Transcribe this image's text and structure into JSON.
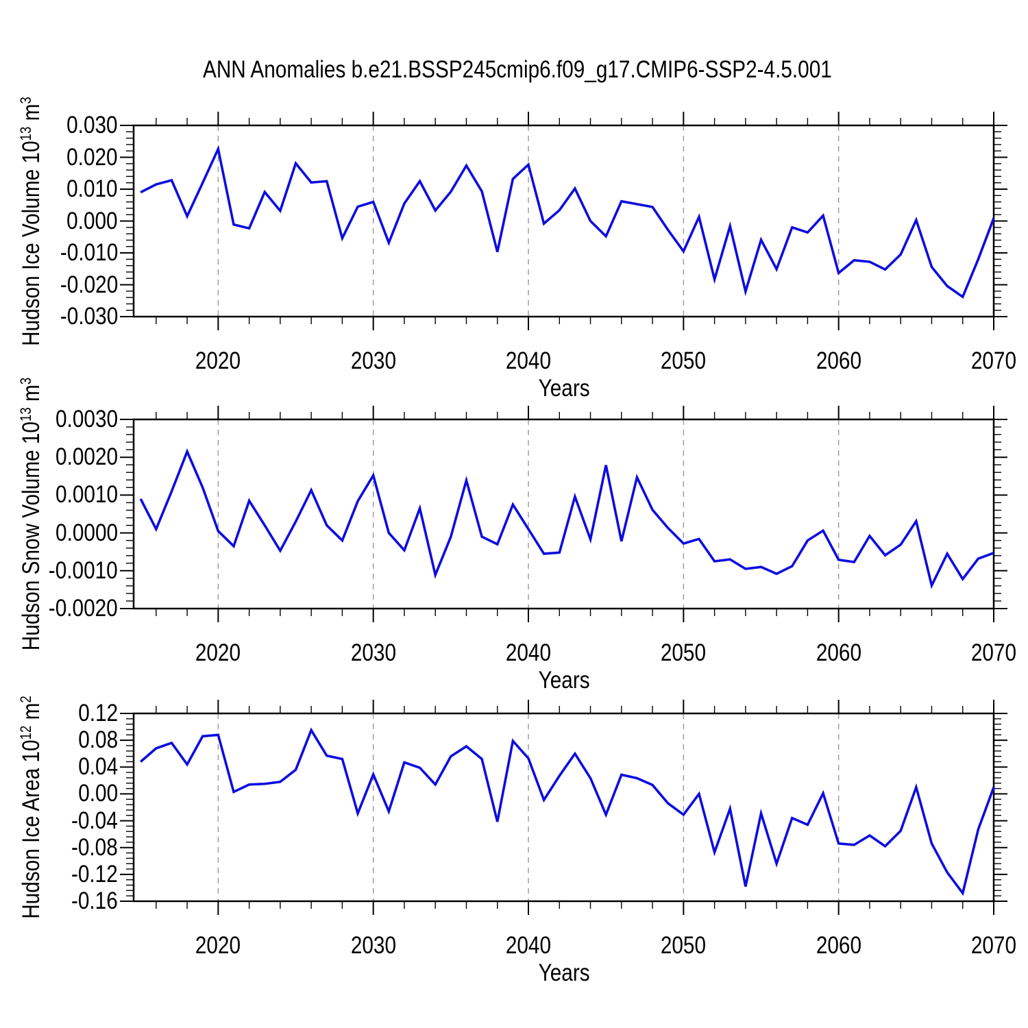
{
  "title": "ANN Anomalies b.e21.BSSP245cmip6.f09_g17.CMIP6-SSP2-4.5.001",
  "style": {
    "line_color": "#0d0de0",
    "grid_color": "#999999",
    "axis_color": "#000000",
    "background": "#ffffff"
  },
  "x_axis": {
    "label": "Years",
    "tick_years": [
      2020,
      2030,
      2040,
      2050,
      2060,
      2070
    ],
    "tick_labels": [
      "2020",
      "2030",
      "2040",
      "2050",
      "2060",
      "2070"
    ],
    "gridline_years": [
      2020,
      2030,
      2040,
      2050,
      2060
    ],
    "minor_step": 2,
    "range": [
      2014.55,
      2070
    ]
  },
  "years": [
    2015,
    2016,
    2017,
    2018,
    2019,
    2020,
    2021,
    2022,
    2023,
    2024,
    2025,
    2026,
    2027,
    2028,
    2029,
    2030,
    2031,
    2032,
    2033,
    2034,
    2035,
    2036,
    2037,
    2038,
    2039,
    2040,
    2041,
    2042,
    2043,
    2044,
    2045,
    2046,
    2047,
    2048,
    2049,
    2050,
    2051,
    2052,
    2053,
    2054,
    2055,
    2056,
    2057,
    2058,
    2059,
    2060,
    2061,
    2062,
    2063,
    2064,
    2065,
    2066,
    2067,
    2068,
    2069,
    2070
  ],
  "chart_data": [
    {
      "type": "line",
      "title": "Hudson Ice Volume anomalies",
      "xlabel": "Years",
      "ylabel": {
        "prefix": "Hudson Ice Volume 10",
        "exp": "13",
        "unit": " m",
        "unit_exp": "3"
      },
      "ylim": [
        -0.03,
        0.03
      ],
      "ytick_values": [
        0.03,
        0.02,
        0.01,
        0.0,
        -0.01,
        -0.02,
        -0.03
      ],
      "ytick_labels": [
        "0.030",
        "0.020",
        "0.010",
        "0.000",
        "-0.010",
        "-0.020",
        "-0.030"
      ],
      "yminor_step": 0.002,
      "grid": "x-dashed",
      "legend": "none",
      "values": [
        0.009,
        0.0115,
        0.0128,
        0.0015,
        0.012,
        0.0226,
        -0.0011,
        -0.0023,
        0.0091,
        0.0032,
        0.0181,
        0.0121,
        0.0125,
        -0.0054,
        0.0045,
        0.006,
        -0.0068,
        0.0055,
        0.0125,
        0.0033,
        0.0092,
        0.0174,
        0.0093,
        -0.0097,
        0.0132,
        0.0177,
        -0.0008,
        0.0034,
        0.0102,
        0.0,
        -0.0048,
        0.0062,
        0.0053,
        0.0044,
        -0.0028,
        -0.0095,
        0.0013,
        -0.0183,
        -0.0016,
        -0.0221,
        -0.0059,
        -0.0151,
        -0.002,
        -0.0036,
        0.0017,
        -0.0163,
        -0.0123,
        -0.0128,
        -0.0152,
        -0.0105,
        0.0003,
        -0.0144,
        -0.0204,
        -0.0238,
        -0.012,
        0.0009
      ]
    },
    {
      "type": "line",
      "title": "Hudson Snow Volume anomalies",
      "xlabel": "Years",
      "ylabel": {
        "prefix": "Hudson Snow Volume 10",
        "exp": "13",
        "unit": " m",
        "unit_exp": "3"
      },
      "ylim": [
        -0.002,
        0.003
      ],
      "ytick_values": [
        0.003,
        0.002,
        0.001,
        0.0,
        -0.001,
        -0.002
      ],
      "ytick_labels": [
        "0.0030",
        "0.0020",
        "0.0010",
        "0.0000",
        "-0.0010",
        "-0.0020"
      ],
      "yminor_step": 0.0002,
      "grid": "x-dashed",
      "legend": "none",
      "values": [
        0.0009,
        0.0001,
        0.0011,
        0.00215,
        0.0012,
        5e-05,
        -0.00035,
        0.00085,
        0.0002,
        -0.00047,
        0.0003,
        0.00113,
        0.0002,
        -0.0002,
        0.00084,
        0.00152,
        0.0,
        -0.00046,
        0.00065,
        -0.00111,
        -0.0001,
        0.00139,
        -0.0001,
        -0.0003,
        0.00075,
        0.0001,
        -0.00055,
        -0.00052,
        0.00096,
        -0.00017,
        0.00179,
        -0.00022,
        0.00147,
        0.00061,
        0.00013,
        -0.00028,
        -0.00016,
        -0.00075,
        -0.0007,
        -0.00095,
        -0.0009,
        -0.00108,
        -0.00088,
        -0.0002,
        6e-05,
        -0.00071,
        -0.00077,
        -8e-05,
        -0.00059,
        -0.00031,
        0.00031,
        -0.00139,
        -0.00055,
        -0.00122,
        -0.00068,
        -0.00053
      ]
    },
    {
      "type": "line",
      "title": "Hudson Ice Area anomalies",
      "xlabel": "Years",
      "ylabel": {
        "prefix": "Hudson Ice Area 10",
        "exp": "12",
        "unit": " m",
        "unit_exp": "2"
      },
      "ylim": [
        -0.16,
        0.12
      ],
      "ytick_values": [
        0.12,
        0.08,
        0.04,
        0.0,
        -0.04,
        -0.08,
        -0.12,
        -0.16
      ],
      "ytick_labels": [
        "0.12",
        "0.08",
        "0.04",
        "0.00",
        "-0.04",
        "-0.08",
        "-0.12",
        "-0.16"
      ],
      "yminor_step": 0.008,
      "grid": "x-dashed",
      "legend": "none",
      "values": [
        0.048,
        0.068,
        0.076,
        0.044,
        0.086,
        0.088,
        0.003,
        0.014,
        0.015,
        0.018,
        0.036,
        0.095,
        0.057,
        0.052,
        -0.029,
        0.029,
        -0.026,
        0.047,
        0.039,
        0.014,
        0.056,
        0.071,
        0.052,
        -0.0415,
        0.079,
        0.053,
        -0.009,
        0.027,
        0.06,
        0.0235,
        -0.031,
        0.0286,
        0.0235,
        0.0133,
        -0.014,
        -0.031,
        0.0,
        -0.087,
        -0.022,
        -0.138,
        -0.029,
        -0.104,
        -0.036,
        -0.046,
        0.001,
        -0.074,
        -0.076,
        -0.062,
        -0.078,
        -0.055,
        0.01,
        -0.074,
        -0.117,
        -0.148,
        -0.053,
        0.01
      ]
    }
  ]
}
